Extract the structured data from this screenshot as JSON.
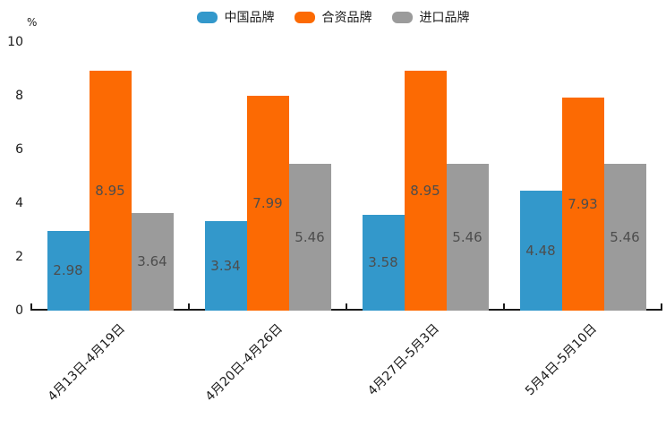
{
  "chart_data": {
    "type": "bar",
    "title": "",
    "unit_label": "%",
    "categories": [
      "4月13日-4月19日",
      "4月20日-4月26日",
      "4月27日-5月3日",
      "5月4日-5月10日"
    ],
    "series": [
      {
        "name": "中国品牌",
        "color": "#3398CB",
        "values": [
          2.98,
          3.34,
          3.58,
          4.48
        ]
      },
      {
        "name": "合资品牌",
        "color": "#FC6A03",
        "values": [
          8.95,
          7.99,
          8.95,
          7.93
        ]
      },
      {
        "name": "进口品牌",
        "color": "#9B9B9B",
        "values": [
          3.64,
          5.46,
          5.46,
          5.46
        ]
      }
    ],
    "ylim": [
      0,
      10
    ],
    "yticks": [
      0,
      2,
      4,
      6,
      8,
      10
    ],
    "grid": false,
    "legend_position": "top",
    "value_labels_decimals": 2,
    "value_label_color": "#4D4D4D",
    "axis_color": "#1A1A1A"
  }
}
